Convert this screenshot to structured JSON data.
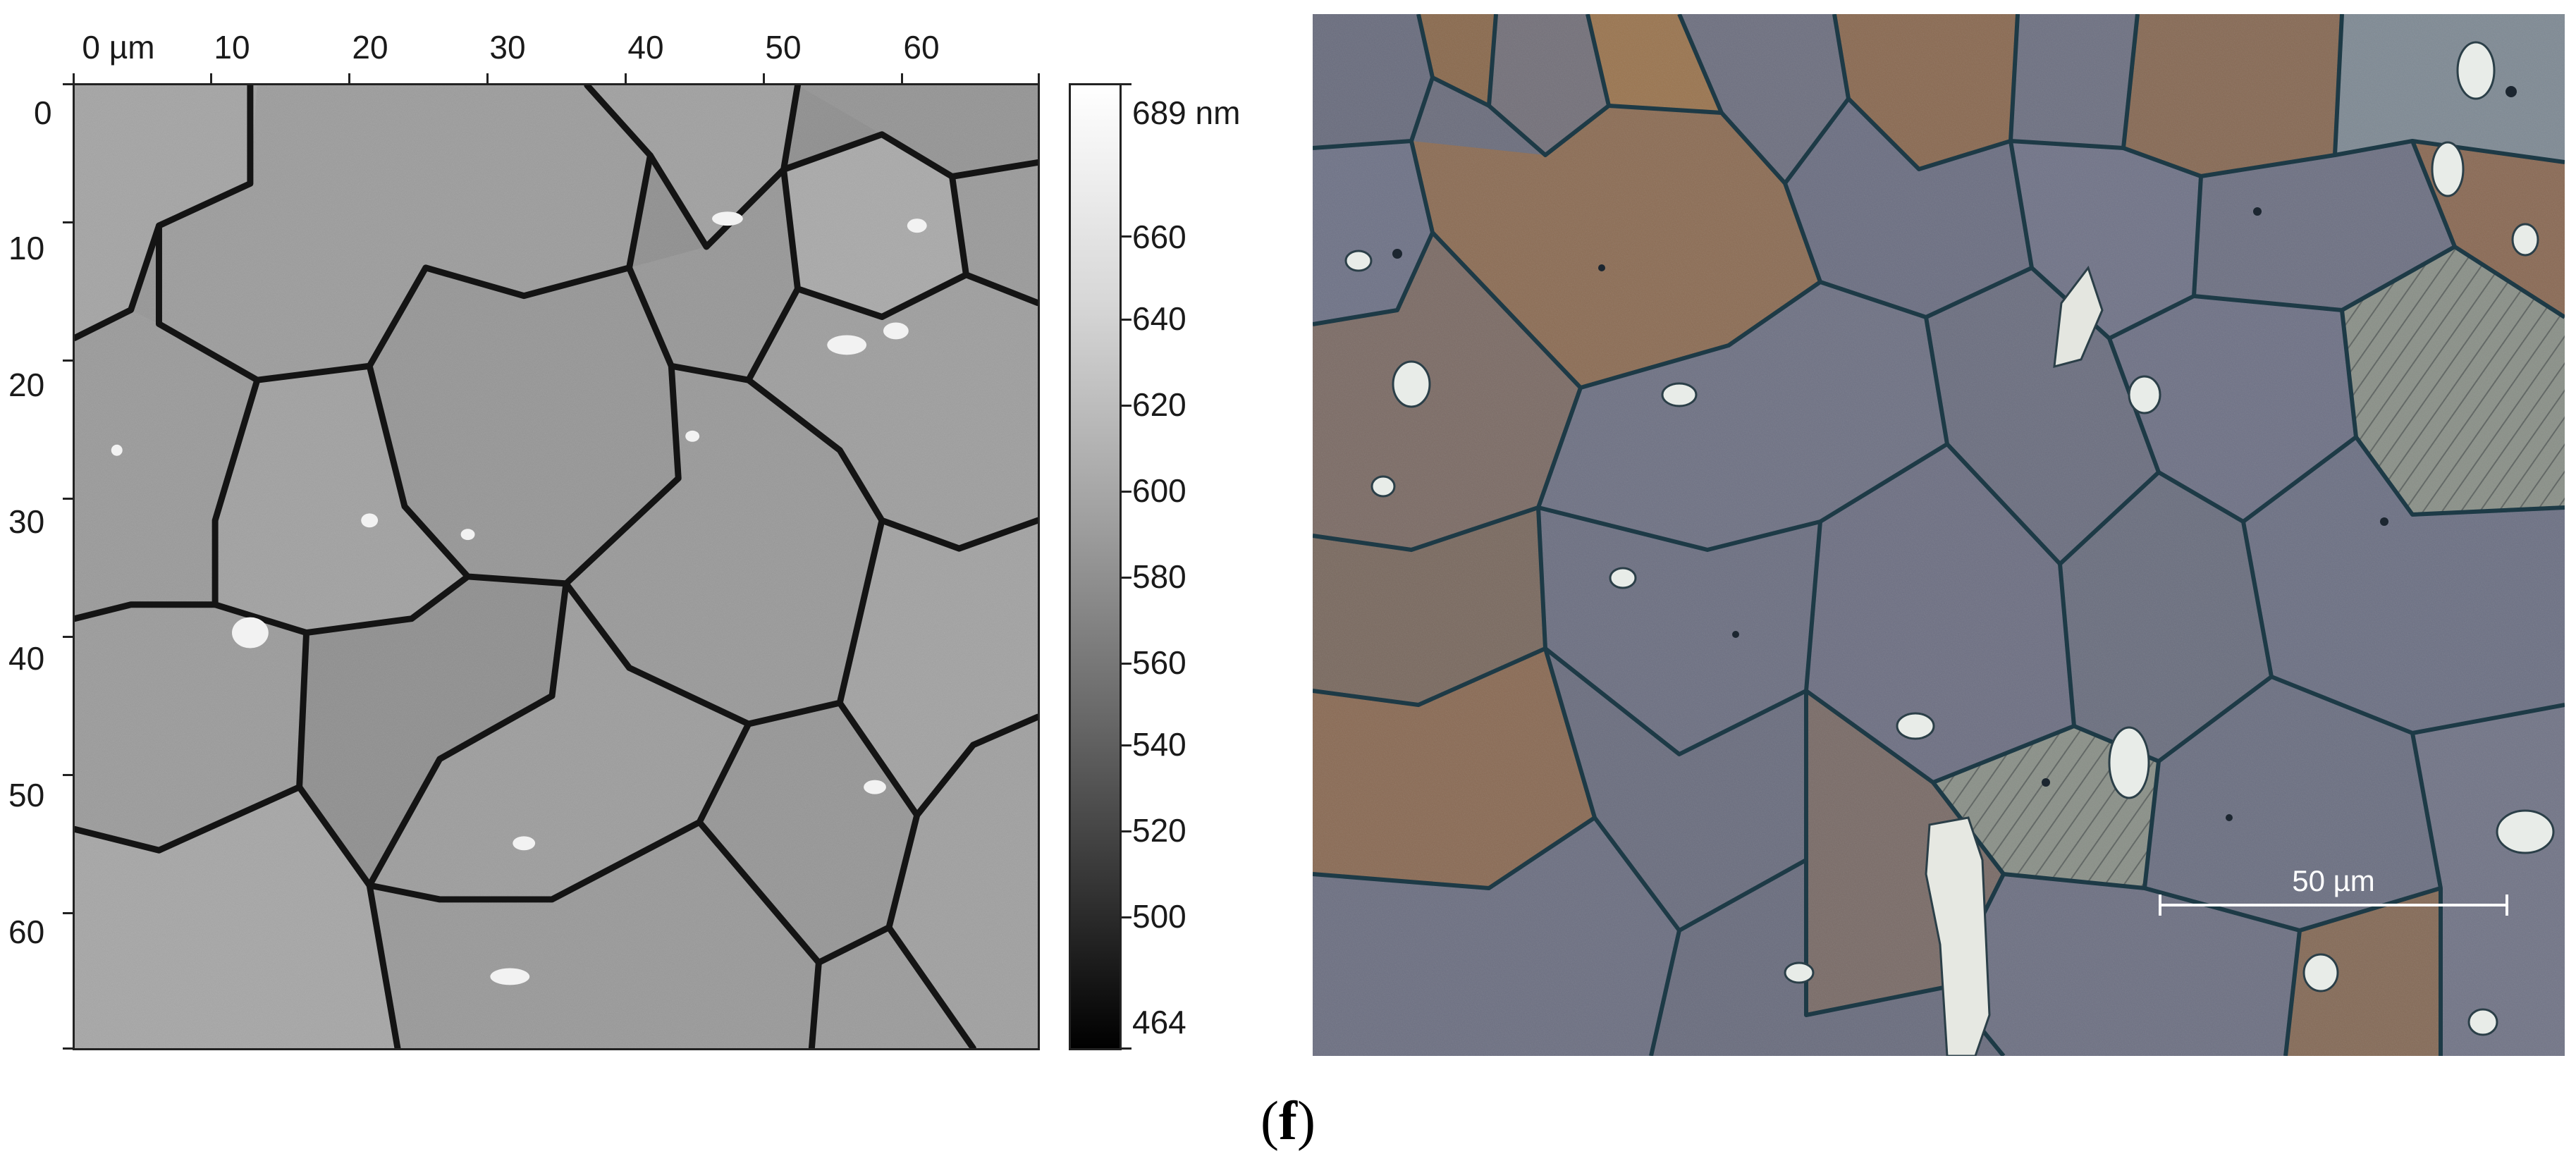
{
  "afm_image": {
    "x_axis_ticks": [
      "0 µm",
      "10",
      "20",
      "30",
      "40",
      "50",
      "60"
    ],
    "y_axis_ticks": [
      "0",
      "10",
      "20",
      "30",
      "40",
      "50",
      "60"
    ],
    "axis_range_um": [
      0,
      70
    ]
  },
  "colorbar": {
    "max_label": "689 nm",
    "labels": [
      "660",
      "640",
      "620",
      "600",
      "580",
      "560",
      "540",
      "520",
      "500"
    ],
    "min_label": "464",
    "range_nm": [
      464,
      689
    ]
  },
  "optical_image": {
    "scale_bar_label": "50 µm"
  },
  "panel_label": {
    "open": "(",
    "letter": "f",
    "close": ")"
  }
}
